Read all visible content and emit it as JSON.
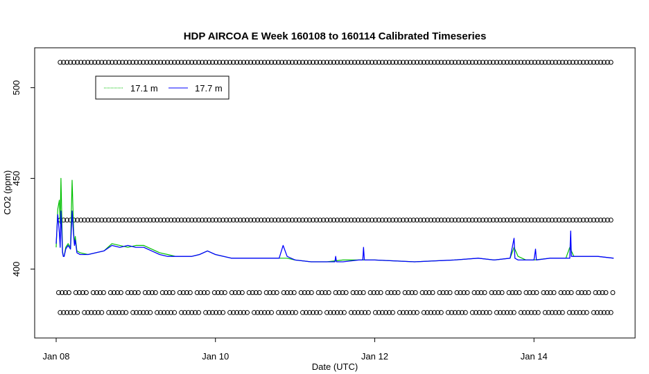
{
  "chart_data": {
    "type": "line",
    "title": "HDP AIRCOA E  Week 160108 to 160114  Calibrated Timeseries",
    "xlabel": "Date (UTC)",
    "ylabel": "CO2 (ppm)",
    "x_ticks": [
      "Jan 08",
      "Jan 10",
      "Jan 12",
      "Jan 14"
    ],
    "x_tick_values": [
      0,
      2,
      4,
      6
    ],
    "y_ticks": [
      "400",
      "450",
      "500"
    ],
    "y_tick_values": [
      400,
      450,
      500
    ],
    "xlim": [
      -0.27,
      7.27
    ],
    "ylim": [
      362,
      522
    ],
    "grid": false,
    "legend": {
      "position": "top-left",
      "entries": [
        "17.1 m",
        "17.7 m"
      ]
    },
    "colors": {
      "17.1 m": "#00c000",
      "17.7 m": "#0000ff",
      "markers": "#000000"
    },
    "series": [
      {
        "name": "17.1 m",
        "x": [
          0.0,
          0.02,
          0.04,
          0.05,
          0.06,
          0.08,
          0.09,
          0.1,
          0.12,
          0.15,
          0.18,
          0.2,
          0.22,
          0.23,
          0.24,
          0.26,
          0.3,
          0.4,
          0.5,
          0.6,
          0.7,
          0.8,
          0.9,
          1.0,
          1.1,
          1.2,
          1.3,
          1.4,
          1.5,
          1.6,
          1.7,
          1.8,
          1.9,
          2.0,
          2.2,
          2.4,
          2.6,
          2.8,
          2.9,
          3.0,
          3.2,
          3.4,
          3.6,
          3.8,
          4.0,
          4.5,
          5.0,
          5.3,
          5.5,
          5.7,
          5.75,
          5.8,
          5.9,
          6.0,
          6.2,
          6.4,
          6.45,
          6.5,
          6.6,
          6.8,
          7.0
        ],
        "y": [
          412,
          433,
          438,
          425,
          450,
          410,
          407,
          407,
          412,
          414,
          412,
          449,
          420,
          414,
          418,
          410,
          409,
          408,
          409,
          410,
          414,
          413,
          412,
          413,
          413,
          411,
          409,
          408,
          407,
          407,
          407,
          408,
          410,
          408,
          406,
          406,
          406,
          406,
          406,
          405,
          404,
          404,
          405,
          405,
          405,
          404,
          405,
          406,
          405,
          406,
          412,
          407,
          405,
          405,
          406,
          406,
          412,
          407,
          407,
          407,
          406
        ]
      },
      {
        "name": "17.7 m",
        "x": [
          0.0,
          0.02,
          0.04,
          0.05,
          0.06,
          0.08,
          0.09,
          0.1,
          0.12,
          0.15,
          0.18,
          0.2,
          0.22,
          0.23,
          0.24,
          0.26,
          0.3,
          0.4,
          0.5,
          0.6,
          0.7,
          0.8,
          0.9,
          1.0,
          1.1,
          1.2,
          1.3,
          1.4,
          1.5,
          1.6,
          1.7,
          1.8,
          1.9,
          2.0,
          2.2,
          2.4,
          2.6,
          2.8,
          2.85,
          2.9,
          2.95,
          3.0,
          3.2,
          3.4,
          3.5,
          3.51,
          3.52,
          3.6,
          3.8,
          3.85,
          3.86,
          3.87,
          4.0,
          4.5,
          5.0,
          5.3,
          5.5,
          5.7,
          5.75,
          5.76,
          5.8,
          5.9,
          6.0,
          6.02,
          6.03,
          6.2,
          6.4,
          6.45,
          6.46,
          6.47,
          6.5,
          6.6,
          6.8,
          7.0
        ],
        "y": [
          414,
          430,
          420,
          412,
          432,
          409,
          407,
          407,
          411,
          413,
          411,
          432,
          418,
          413,
          416,
          409,
          408,
          408,
          409,
          410,
          413,
          412,
          413,
          412,
          412,
          410,
          408,
          407,
          407,
          407,
          407,
          408,
          410,
          408,
          406,
          406,
          406,
          406,
          413,
          407,
          406,
          405,
          404,
          404,
          404,
          407,
          404,
          404,
          405,
          405,
          412,
          405,
          405,
          404,
          405,
          406,
          405,
          406,
          417,
          406,
          405,
          405,
          405,
          411,
          405,
          406,
          406,
          406,
          421,
          407,
          407,
          407,
          407,
          406
        ]
      }
    ],
    "marker_rows": [
      {
        "name": "reference markers",
        "y": 514
      },
      {
        "name": "reference markers",
        "y": 427
      },
      {
        "name": "reference markers",
        "y": 387
      },
      {
        "name": "reference markers",
        "y": 376
      }
    ]
  }
}
